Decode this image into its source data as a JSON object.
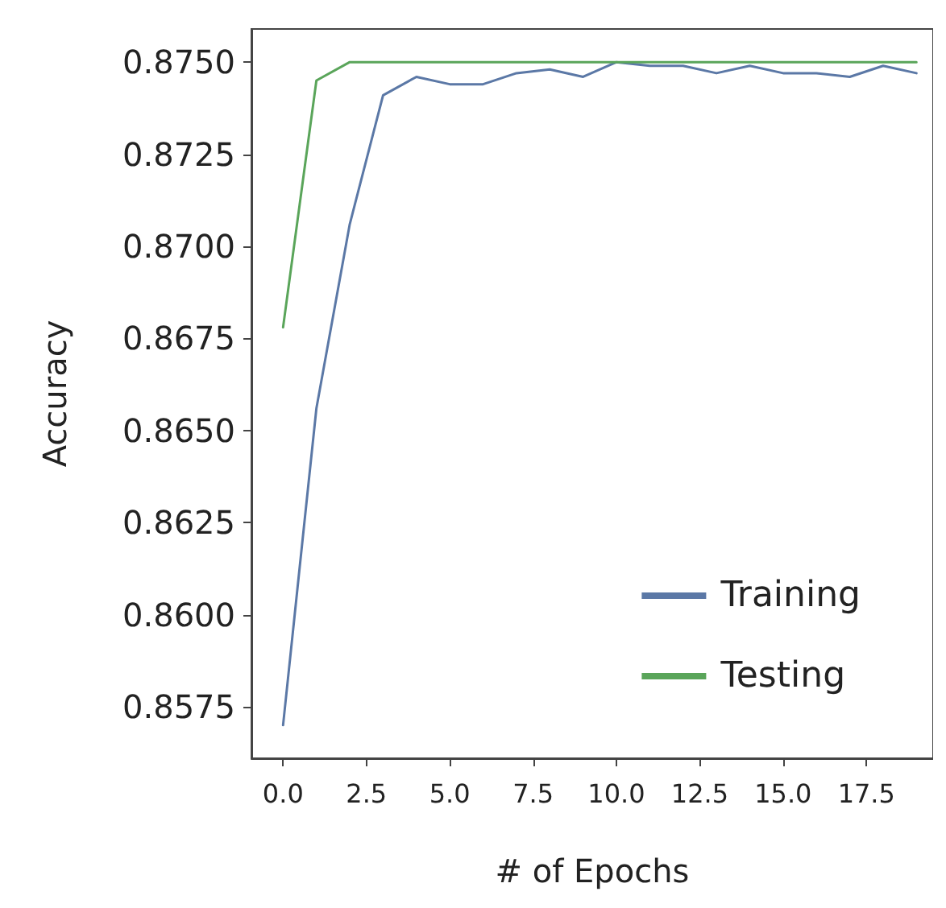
{
  "chart_data": {
    "type": "line",
    "xlabel": "# of Epochs",
    "ylabel": "Accuracy",
    "x": [
      0,
      1,
      2,
      3,
      4,
      5,
      6,
      7,
      8,
      9,
      10,
      11,
      12,
      13,
      14,
      15,
      16,
      17,
      18,
      19
    ],
    "series": [
      {
        "name": "Training",
        "color": "#5b78a6",
        "values": [
          0.857,
          0.8656,
          0.8706,
          0.8741,
          0.8746,
          0.8744,
          0.8744,
          0.8747,
          0.8748,
          0.8746,
          0.875,
          0.8749,
          0.8749,
          0.8747,
          0.8749,
          0.8747,
          0.8747,
          0.8746,
          0.8749,
          0.8747
        ]
      },
      {
        "name": "Testing",
        "color": "#5aa55a",
        "values": [
          0.8678,
          0.8745,
          0.875,
          0.875,
          0.875,
          0.875,
          0.875,
          0.875,
          0.875,
          0.875,
          0.875,
          0.875,
          0.875,
          0.875,
          0.875,
          0.875,
          0.875,
          0.875,
          0.875,
          0.875
        ]
      }
    ],
    "xlim": [
      -0.95,
      19.5
    ],
    "xticks": [
      {
        "value": 0,
        "label": "0.0"
      },
      {
        "value": 2.5,
        "label": "2.5"
      },
      {
        "value": 5,
        "label": "5.0"
      },
      {
        "value": 7.5,
        "label": "7.5"
      },
      {
        "value": 10,
        "label": "10.0"
      },
      {
        "value": 12.5,
        "label": "12.5"
      },
      {
        "value": 15,
        "label": "15.0"
      },
      {
        "value": 17.5,
        "label": "17.5"
      }
    ],
    "ylim": [
      0.8561,
      0.8759
    ],
    "yticks": [
      {
        "value": 0.8575,
        "label": "0.8575"
      },
      {
        "value": 0.86,
        "label": "0.8600"
      },
      {
        "value": 0.8625,
        "label": "0.8625"
      },
      {
        "value": 0.865,
        "label": "0.8650"
      },
      {
        "value": 0.8675,
        "label": "0.8675"
      },
      {
        "value": 0.87,
        "label": "0.8700"
      },
      {
        "value": 0.8725,
        "label": "0.8725"
      },
      {
        "value": 0.875,
        "label": "0.8750"
      }
    ],
    "grid": false,
    "legend": "bottom right",
    "marker": "none",
    "line_style": "solid"
  }
}
